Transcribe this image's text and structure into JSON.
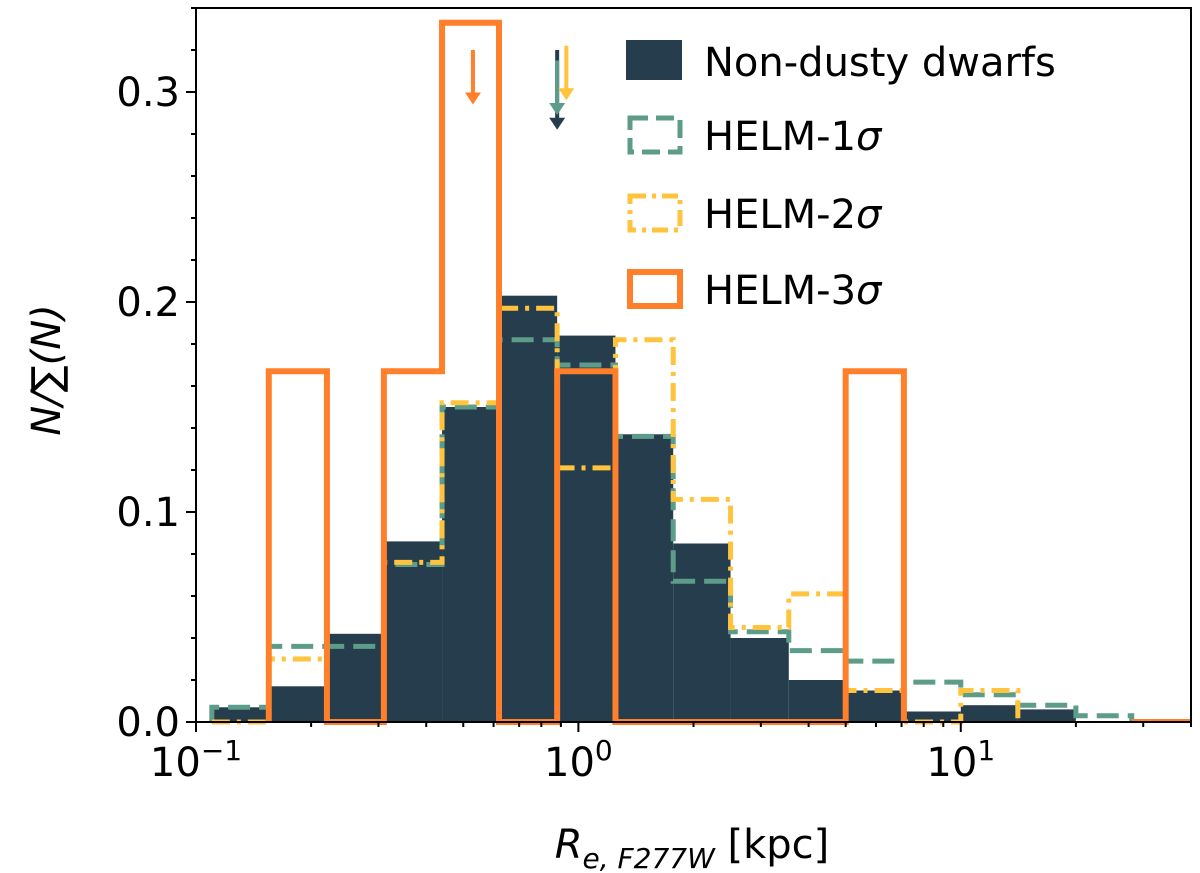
{
  "chart_data": {
    "type": "histogram",
    "xscale": "log",
    "xlim": [
      0.1,
      40
    ],
    "ylim": [
      0,
      0.34
    ],
    "xlabel": {
      "main": "R",
      "sub": "e, F277W",
      "unit": " [kpc]"
    },
    "ylabel": "N/∑(N)",
    "yticks": [
      {
        "value": 0.0,
        "label": "0.0"
      },
      {
        "value": 0.1,
        "label": "0.1"
      },
      {
        "value": 0.2,
        "label": "0.2"
      },
      {
        "value": 0.3,
        "label": "0.3"
      }
    ],
    "xticks": [
      {
        "value": 0.1,
        "base": "10",
        "exp": "−1"
      },
      {
        "value": 1,
        "base": "10",
        "exp": "0"
      },
      {
        "value": 10,
        "base": "10",
        "exp": "1"
      }
    ],
    "legend_position": "top-right",
    "series": [
      {
        "name": "Non-dusty dwarfs",
        "label": "Non-dusty dwarfs",
        "style": "filled",
        "color": "#263D4D",
        "edges": [
          0.11,
          0.155,
          0.22,
          0.31,
          0.44,
          0.62,
          0.88,
          1.25,
          1.77,
          2.5,
          3.55,
          5.0,
          7.1,
          10.0,
          14.1,
          20.0
        ],
        "values": [
          0.007,
          0.017,
          0.042,
          0.086,
          0.15,
          0.203,
          0.184,
          0.137,
          0.085,
          0.04,
          0.02,
          0.015,
          0.005,
          0.008,
          0.006
        ]
      },
      {
        "name": "HELM-1σ",
        "label_base": "HELM-1",
        "style": "dashed",
        "color": "#5E9C8A",
        "edges": [
          0.11,
          0.155,
          0.22,
          0.31,
          0.44,
          0.62,
          0.88,
          1.25,
          1.77,
          2.5,
          3.55,
          5.0,
          7.1,
          10.0,
          14.1,
          20.0,
          28.0
        ],
        "values": [
          0.007,
          0.036,
          0.036,
          0.075,
          0.15,
          0.182,
          0.17,
          0.136,
          0.067,
          0.043,
          0.034,
          0.029,
          0.019,
          0.013,
          0.008,
          0.003
        ]
      },
      {
        "name": "HELM-2σ",
        "label_base": "HELM-2",
        "style": "dashdot",
        "color": "#FFC33D",
        "edges": [
          0.11,
          0.155,
          0.22,
          0.31,
          0.44,
          0.62,
          0.88,
          1.25,
          1.77,
          2.5,
          3.55,
          5.0,
          7.1,
          10.0,
          14.1
        ],
        "values": [
          0.0,
          0.03,
          0.0,
          0.076,
          0.152,
          0.197,
          0.121,
          0.182,
          0.106,
          0.045,
          0.061,
          0.015,
          0.0,
          0.015
        ]
      },
      {
        "name": "HELM-3σ",
        "label_base": "HELM-3",
        "style": "step",
        "color": "#FF7F2A",
        "edges": [
          0.155,
          0.22,
          0.31,
          0.44,
          0.62,
          0.88,
          1.25,
          1.77,
          2.5,
          3.55,
          5.0,
          7.1
        ],
        "values": [
          0.167,
          0.0,
          0.167,
          0.333,
          0.0,
          0.167,
          0.0,
          0.0,
          0.0,
          0.0,
          0.167
        ]
      }
    ],
    "median_arrows": [
      {
        "series": "HELM-3σ",
        "x": 0.53,
        "color": "#FF7F2A",
        "y_top": 0.32,
        "y_bottom": 0.295
      },
      {
        "series": "Non-dusty dwarfs",
        "x": 0.88,
        "color": "#263D4D",
        "y_top": 0.32,
        "y_bottom": 0.283
      },
      {
        "series": "HELM-1σ",
        "x": 0.88,
        "color": "#5E9C8A",
        "y_top": 0.315,
        "y_bottom": 0.29
      },
      {
        "series": "HELM-2σ",
        "x": 0.93,
        "color": "#FFC33D",
        "y_top": 0.322,
        "y_bottom": 0.297
      }
    ]
  }
}
